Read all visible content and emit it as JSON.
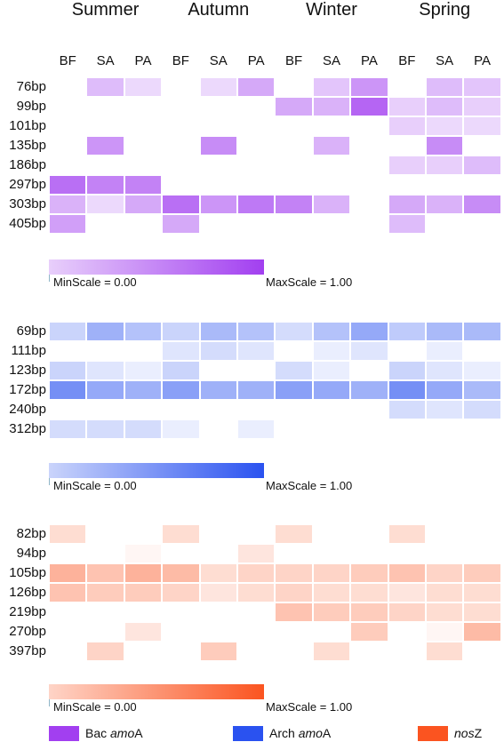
{
  "seasons": [
    "Summer",
    "Autumn",
    "Winter",
    "Spring"
  ],
  "sites": [
    "BF",
    "SA",
    "PA"
  ],
  "legend": [
    {
      "prefix": "Bac ",
      "gene": "amo",
      "suffix": "A",
      "color": "#a23ff0"
    },
    {
      "prefix": "Arch ",
      "gene": "amo",
      "suffix": "A",
      "color": "#2a52f0"
    },
    {
      "prefix": "",
      "gene": "nos",
      "suffix": "Z",
      "color": "#fb5420"
    }
  ],
  "chart_data": [
    {
      "type": "heatmap",
      "gene": "Bac amoA",
      "color": "#a23ff0",
      "min_label": "MinScale = 0.00",
      "max_label": "MaxScale = 1.00",
      "columns": [
        "Summer BF",
        "Summer SA",
        "Summer PA",
        "Autumn BF",
        "Autumn SA",
        "Autumn PA",
        "Winter BF",
        "Winter SA",
        "Winter PA",
        "Spring BF",
        "Spring SA",
        "Spring PA"
      ],
      "rows": [
        "76bp",
        "99bp",
        "101bp",
        "135bp",
        "186bp",
        "297bp",
        "303bp",
        "405bp"
      ],
      "values": [
        [
          0,
          0.35,
          0.2,
          0,
          0.2,
          0.45,
          0,
          0.3,
          0.55,
          0,
          0.35,
          0.3
        ],
        [
          0,
          0,
          0,
          0,
          0,
          0,
          0.45,
          0.4,
          0.8,
          0.25,
          0.35,
          0.25
        ],
        [
          0,
          0,
          0,
          0,
          0,
          0,
          0,
          0,
          0,
          0.25,
          0.2,
          0.2
        ],
        [
          0,
          0.55,
          0,
          0,
          0.6,
          0,
          0,
          0.4,
          0,
          0,
          0.6,
          0
        ],
        [
          0,
          0,
          0,
          0,
          0,
          0,
          0,
          0,
          0,
          0.25,
          0.25,
          0.35
        ],
        [
          0.75,
          0.65,
          0.65,
          0,
          0,
          0,
          0,
          0,
          0,
          0,
          0,
          0
        ],
        [
          0.4,
          0.2,
          0.45,
          0.75,
          0.55,
          0.7,
          0.65,
          0.4,
          0,
          0.45,
          0.4,
          0.6
        ],
        [
          0.5,
          0,
          0,
          0.45,
          0,
          0,
          0,
          0,
          0,
          0.35,
          0,
          0
        ]
      ]
    },
    {
      "type": "heatmap",
      "gene": "Arch amoA",
      "color": "#2a52f0",
      "min_label": "MinScale = 0.00",
      "max_label": "MaxScale = 1.00",
      "columns": [
        "Summer BF",
        "Summer SA",
        "Summer PA",
        "Autumn BF",
        "Autumn SA",
        "Autumn PA",
        "Winter BF",
        "Winter SA",
        "Winter PA",
        "Spring BF",
        "Spring SA",
        "Spring PA"
      ],
      "rows": [
        "69bp",
        "111bp",
        "123bp",
        "172bp",
        "240bp",
        "312bp"
      ],
      "values": [
        [
          0.25,
          0.45,
          0.35,
          0.25,
          0.4,
          0.35,
          0.2,
          0.35,
          0.5,
          0.3,
          0.4,
          0.4
        ],
        [
          0,
          0,
          0,
          0.15,
          0.2,
          0.15,
          0,
          0.1,
          0.15,
          0,
          0.1,
          0
        ],
        [
          0.25,
          0.15,
          0.1,
          0.25,
          0,
          0,
          0.2,
          0.1,
          0,
          0.25,
          0.15,
          0.1
        ],
        [
          0.65,
          0.5,
          0.45,
          0.55,
          0.45,
          0.45,
          0.55,
          0.5,
          0.45,
          0.65,
          0.5,
          0.4
        ],
        [
          0,
          0,
          0,
          0,
          0,
          0,
          0,
          0,
          0,
          0.2,
          0.15,
          0.2
        ],
        [
          0.2,
          0.2,
          0.2,
          0.1,
          0,
          0.1,
          0,
          0,
          0,
          0,
          0,
          0
        ]
      ]
    },
    {
      "type": "heatmap",
      "gene": "nosZ",
      "color": "#fb5420",
      "min_label": "MinScale = 0.00",
      "max_label": "MaxScale = 1.00",
      "columns": [
        "Summer BF",
        "Summer SA",
        "Summer PA",
        "Autumn BF",
        "Autumn SA",
        "Autumn PA",
        "Winter BF",
        "Winter SA",
        "Winter PA",
        "Spring BF",
        "Spring SA",
        "Spring PA"
      ],
      "rows": [
        "82bp",
        "94bp",
        "105bp",
        "126bp",
        "219bp",
        "270bp",
        "397bp"
      ],
      "values": [
        [
          0.2,
          0,
          0,
          0.2,
          0,
          0,
          0.2,
          0,
          0,
          0.2,
          0,
          0
        ],
        [
          0,
          0,
          0.05,
          0,
          0,
          0.15,
          0,
          0,
          0,
          0,
          0,
          0
        ],
        [
          0.45,
          0.35,
          0.45,
          0.4,
          0.2,
          0.25,
          0.25,
          0.25,
          0.3,
          0.35,
          0.25,
          0.3
        ],
        [
          0.35,
          0.3,
          0.3,
          0.25,
          0.15,
          0.2,
          0.25,
          0.2,
          0.2,
          0.15,
          0.2,
          0.2
        ],
        [
          0,
          0,
          0,
          0,
          0,
          0,
          0.35,
          0.3,
          0.3,
          0.25,
          0.2,
          0.2
        ],
        [
          0,
          0,
          0.15,
          0,
          0,
          0,
          0,
          0,
          0.3,
          0,
          0.05,
          0.4
        ],
        [
          0,
          0.25,
          0,
          0,
          0.3,
          0,
          0,
          0.2,
          0,
          0,
          0.2,
          0
        ]
      ]
    }
  ]
}
